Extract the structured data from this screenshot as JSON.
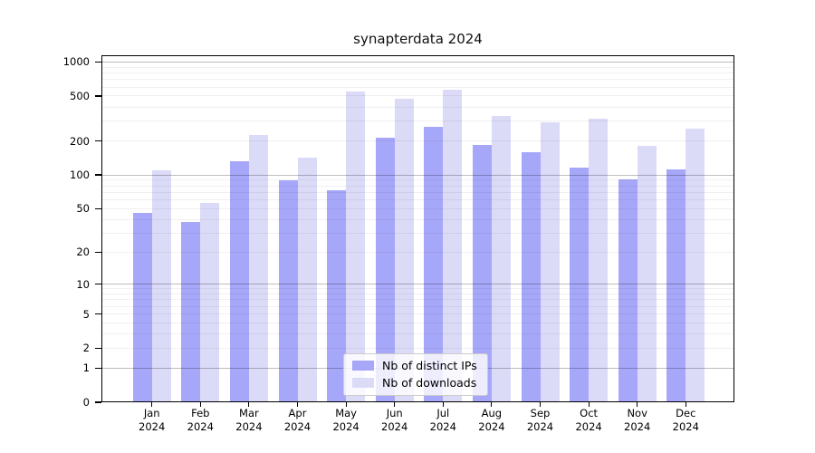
{
  "title": "synapterdata 2024",
  "chart_data": {
    "type": "bar",
    "title": "synapterdata 2024",
    "categories": [
      "Jan 2024",
      "Feb 2024",
      "Mar 2024",
      "Apr 2024",
      "May 2024",
      "Jun 2024",
      "Jul 2024",
      "Aug 2024",
      "Sep 2024",
      "Oct 2024",
      "Nov 2024",
      "Dec 2024"
    ],
    "months": [
      "Jan",
      "Feb",
      "Mar",
      "Apr",
      "May",
      "Jun",
      "Jul",
      "Aug",
      "Sep",
      "Oct",
      "Nov",
      "Dec"
    ],
    "year": "2024",
    "series": [
      {
        "name": "Nb of distinct IPs",
        "color": "#a7a7f9",
        "values": [
          46,
          38,
          132,
          90,
          73,
          213,
          266,
          185,
          158,
          116,
          91,
          112
        ]
      },
      {
        "name": "Nb of downloads",
        "color": "#dbdbf8",
        "values": [
          110,
          56,
          226,
          143,
          550,
          472,
          570,
          331,
          293,
          317,
          180,
          259
        ]
      }
    ],
    "yscale": "log1p",
    "yticks": [
      1000,
      500,
      200,
      100,
      50,
      20,
      10,
      5,
      2,
      1,
      0
    ],
    "ylim": [
      0,
      1145
    ],
    "grid": "horizontal minor+major gridlines drawn over bars",
    "legend_position": "lower center",
    "xlabel": "",
    "ylabel": ""
  }
}
